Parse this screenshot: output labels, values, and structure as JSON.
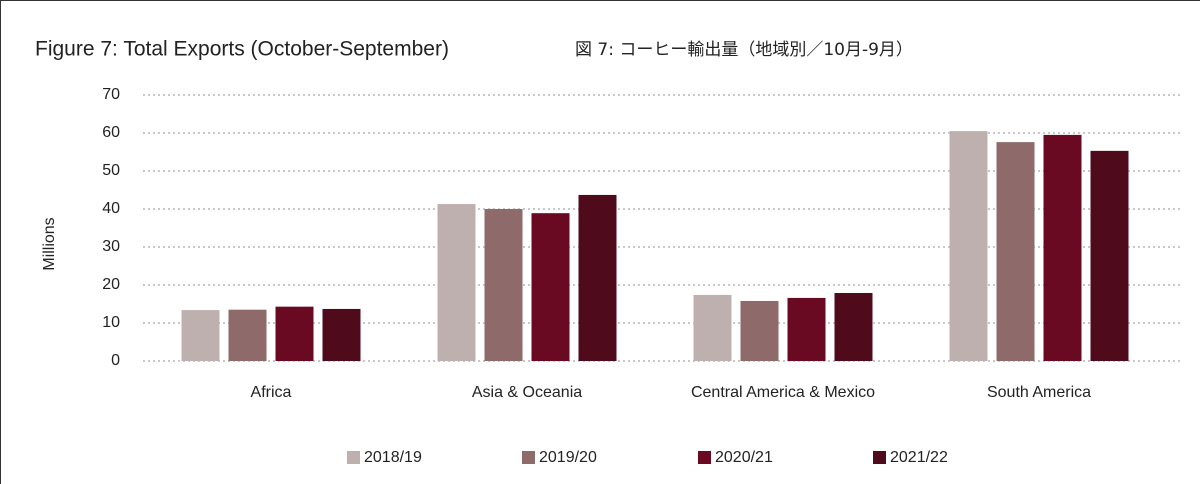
{
  "chart_data": {
    "type": "bar",
    "title": "Figure 7: Total Exports (October-September)",
    "subtitle": "図 7: コーヒー輸出量（地域別／10月-9月）",
    "y_label": "Millions",
    "categories": [
      "Africa",
      "Asia & Oceania",
      "Central America & Mexico",
      "South America"
    ],
    "series": [
      {
        "name": "2018/19",
        "color": "#bfb0b0",
        "values": [
          13.4,
          41.3,
          17.4,
          60.5
        ]
      },
      {
        "name": "2019/20",
        "color": "#8e6a6a",
        "values": [
          13.5,
          40.0,
          15.8,
          57.6
        ]
      },
      {
        "name": "2020/21",
        "color": "#6a0a22",
        "values": [
          14.3,
          38.9,
          16.6,
          59.5
        ]
      },
      {
        "name": "2021/22",
        "color": "#4f0a1c",
        "values": [
          13.7,
          43.7,
          17.9,
          55.3
        ]
      }
    ],
    "ylim": [
      0,
      70
    ],
    "yticks": [
      0,
      10,
      20,
      30,
      40,
      50,
      60,
      70
    ],
    "grid": true,
    "legend": "bottom"
  }
}
